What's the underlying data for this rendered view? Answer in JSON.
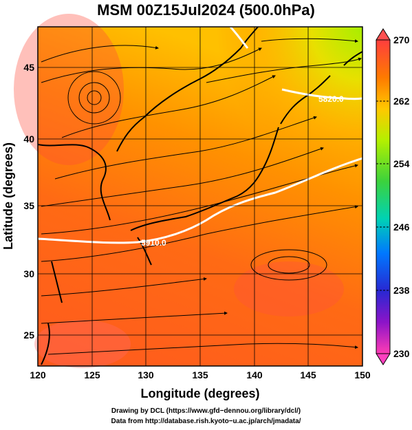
{
  "title": "MSM 00Z15Jul2024 (500.0hPa)",
  "axes": {
    "xlabel": "Longitude (degrees)",
    "ylabel": "Latitude  (degrees)",
    "xlim": [
      120,
      150
    ],
    "ylim": [
      22.5,
      47.7
    ],
    "xticks": [
      "120",
      "125",
      "130",
      "135",
      "140",
      "145",
      "150"
    ],
    "yticks": [
      "25",
      "30",
      "35",
      "40",
      "45"
    ]
  },
  "colorbar": {
    "min": 230,
    "max": 270,
    "labels": [
      "270",
      "262",
      "254",
      "246",
      "238",
      "230"
    ],
    "colors": [
      "#ff3e3e",
      "#ff7a00",
      "#ffc800",
      "#b4f000",
      "#3cd23c",
      "#00d2b4",
      "#0078ff",
      "#2828d2",
      "#8c14c8",
      "#ff3cb4"
    ]
  },
  "contours": [
    {
      "label": "5910.0",
      "value": 5910
    },
    {
      "label": "5820.0",
      "value": 5820
    }
  ],
  "credits": {
    "line1": "Drawing by DCL (https://www.gfd−dennou.org/library/dcl/)",
    "line2": "Data from http://database.rish.kyoto−u.ac.jp/arch/jmadata/"
  }
}
